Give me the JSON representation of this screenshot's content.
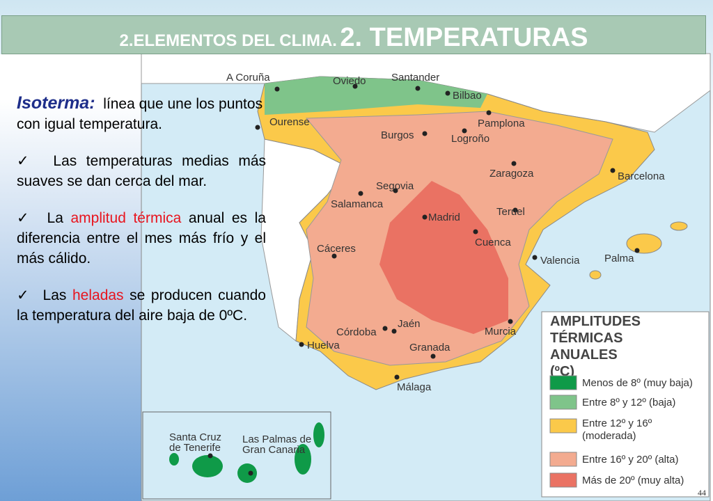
{
  "header": {
    "title_small": "2.ELEMENTOS DEL CLIMA.",
    "title_big": "2. TEMPERATURAS"
  },
  "text": {
    "term": "Isoterma:",
    "definition": "línea que une los  puntos con igual temperatura.",
    "bullets": [
      {
        "parts": [
          "Las temperaturas medias más suaves se dan cerca del mar."
        ]
      },
      {
        "parts": [
          "La ",
          "amplitud térmica",
          " anual es la diferencia entre el mes más frío y el más cálido."
        ]
      },
      {
        "parts": [
          "Las ",
          "heladas",
          " se producen cuando la temperatura del aire baja de 0ºC."
        ]
      }
    ]
  },
  "map": {
    "cities": [
      "A Coruña",
      "Oviedo",
      "Santander",
      "Bilbao",
      "Ourense",
      "Pamplona",
      "Burgos",
      "Logroño",
      "Zaragoza",
      "Barcelona",
      "Segovia",
      "Salamanca",
      "Madrid",
      "Teruel",
      "Cuenca",
      "Cáceres",
      "Valencia",
      "Palma",
      "Córdoba",
      "Jaén",
      "Murcia",
      "Huelva",
      "Granada",
      "Málaga",
      "Santa Cruz de Tenerife",
      "Las Palmas de Gran Canaria"
    ],
    "legend": {
      "title": "AMPLITUDES TÉRMICAS ANUALES (ºC)",
      "items": [
        {
          "label": "Menos de 8º (muy baja)",
          "color": "#0f9a48"
        },
        {
          "label": "Entre 8º y 12º (baja)",
          "color": "#7fc48a"
        },
        {
          "label": "Entre 12º y 16º (moderada)",
          "color": "#fbc94a"
        },
        {
          "label": "Entre 16º y 20º (alta)",
          "color": "#f3ab90"
        },
        {
          "label": "Más de 20º (muy alta)",
          "color": "#ea7263"
        }
      ]
    }
  },
  "page_number": "44"
}
